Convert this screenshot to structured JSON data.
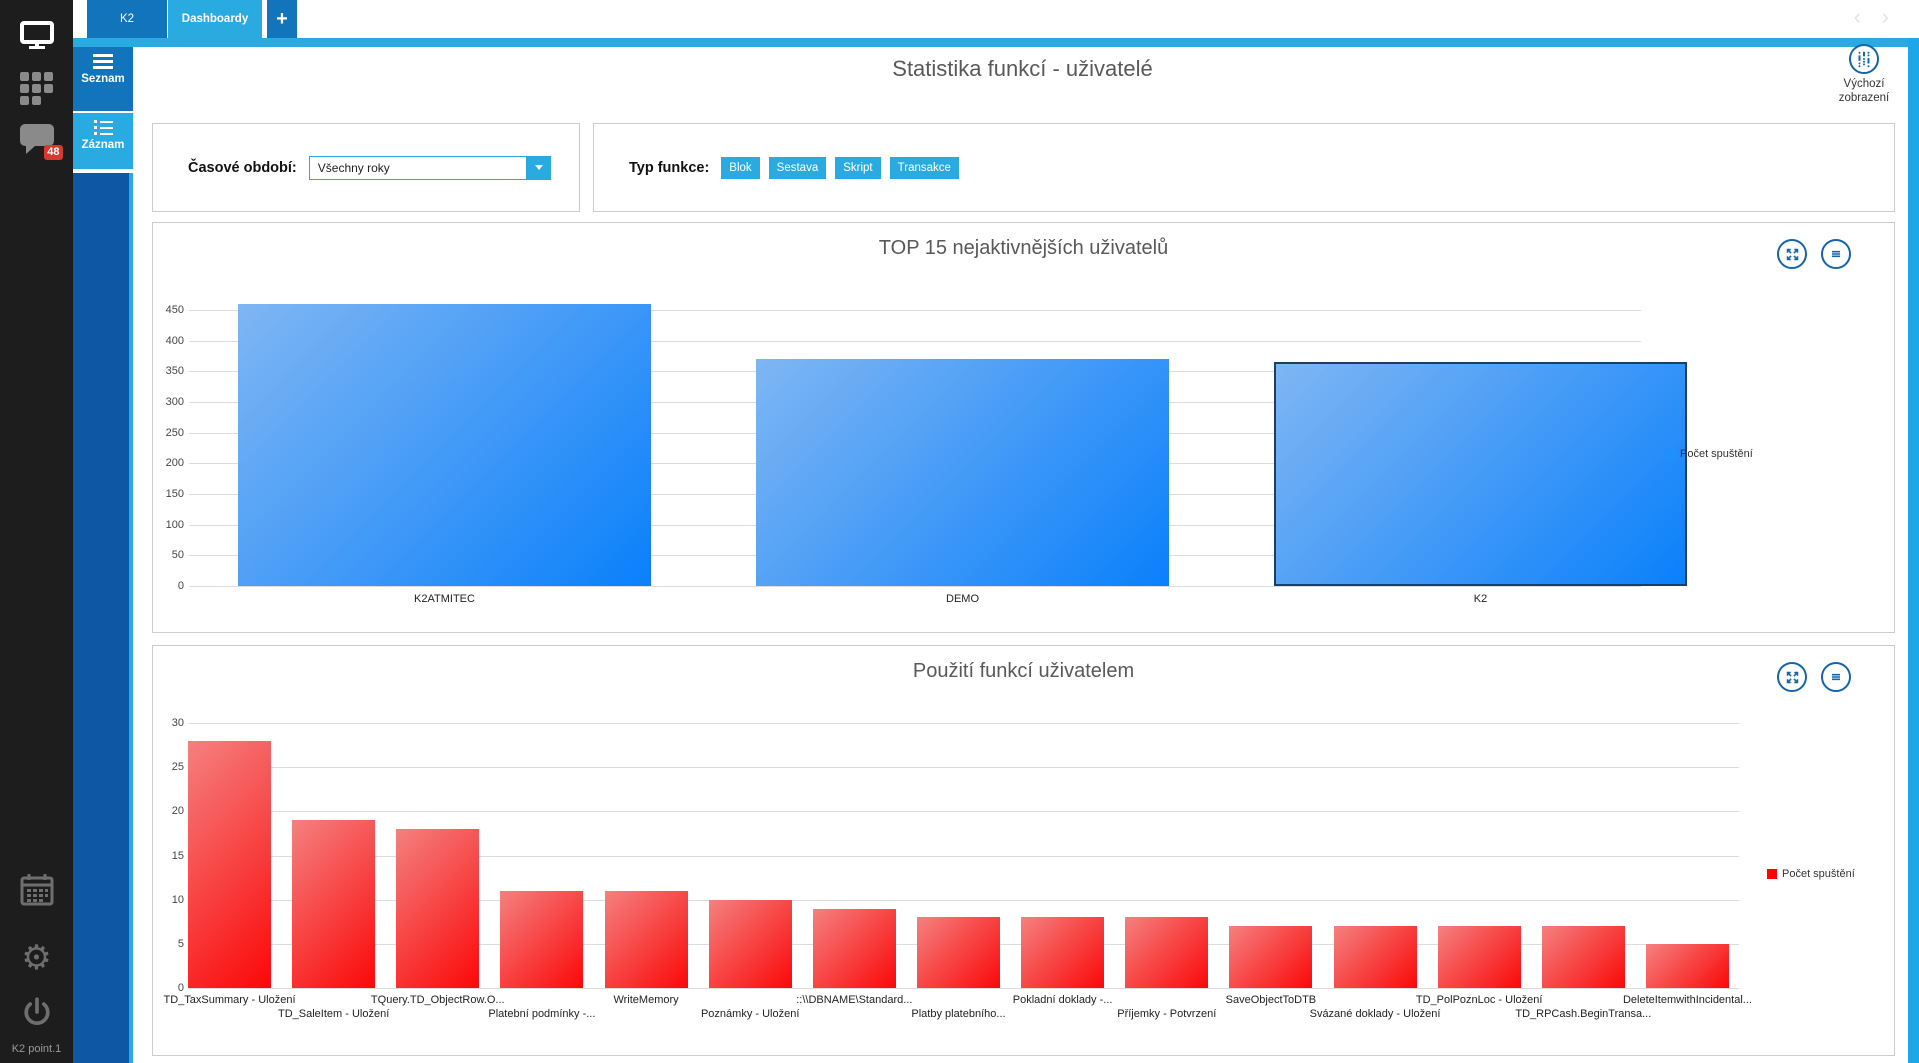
{
  "tabs": {
    "k2": "K2",
    "dashboardy": "Dashboardy",
    "add": "+"
  },
  "sidebar": {
    "badge": "48",
    "footer": "K2 point.1"
  },
  "subnav": {
    "seznam": "Seznam",
    "zaznam": "Záznam"
  },
  "header": {
    "title": "Statistika funkcí - uživatelé",
    "default_view": "Výchozí zobrazení"
  },
  "filters": {
    "period_label": "Časové období:",
    "period_value": "Všechny roky",
    "type_label": "Typ funkce:",
    "type_buttons": [
      "Blok",
      "Sestava",
      "Skript",
      "Transakce"
    ]
  },
  "colors": {
    "accent_light": "#29abe2",
    "accent_dark": "#1274ba",
    "badge_red": "#d8382e"
  },
  "chart_data": [
    {
      "type": "bar",
      "title": "TOP 15 nejaktivnějších uživatelů",
      "categories": [
        "K2ATMITEC",
        "DEMO",
        "K2"
      ],
      "values": [
        460,
        370,
        365
      ],
      "ylim": [
        0,
        450
      ],
      "yticks": [
        0,
        50,
        100,
        150,
        200,
        250,
        300,
        350,
        400,
        450
      ],
      "grid": true,
      "legend": "Počet spuštění",
      "legend_position": "right",
      "legend_color": "#1e8ffd",
      "bar_gradient": [
        "#7fb6f3",
        "#0a80fb"
      ],
      "selected_index": 2
    },
    {
      "type": "bar",
      "title": "Použití funkcí uživatelem",
      "categories": [
        "TD_TaxSummary - Uložení",
        "TD_SaleItem - Uložení",
        "TQuery.TD_ObjectRow.O...",
        "Platební podmínky -...",
        "WriteMemory",
        "Poznámky - Uložení",
        "::\\\\DBNAME\\Standard...",
        "Platby platebního...",
        "Pokladní doklady -...",
        "Příjemky - Potvrzení",
        "SaveObjectToDTB",
        "Svázané doklady - Uložení",
        "TD_PolPoznLoc - Uložení",
        "TD_RPCash.BeginTransa...",
        "DeleteItemwithIncidental..."
      ],
      "values": [
        28,
        19,
        18,
        11,
        11,
        10,
        9,
        8,
        8,
        8,
        7,
        7,
        7,
        7,
        5
      ],
      "ylim": [
        0,
        30
      ],
      "yticks": [
        0,
        5,
        10,
        15,
        20,
        25,
        30
      ],
      "grid": true,
      "legend": "Počet spuštění",
      "legend_position": "right",
      "legend_color": "#fd0404",
      "bar_gradient": [
        "#f58080",
        "#fb0808"
      ],
      "selected_index": -1
    }
  ]
}
